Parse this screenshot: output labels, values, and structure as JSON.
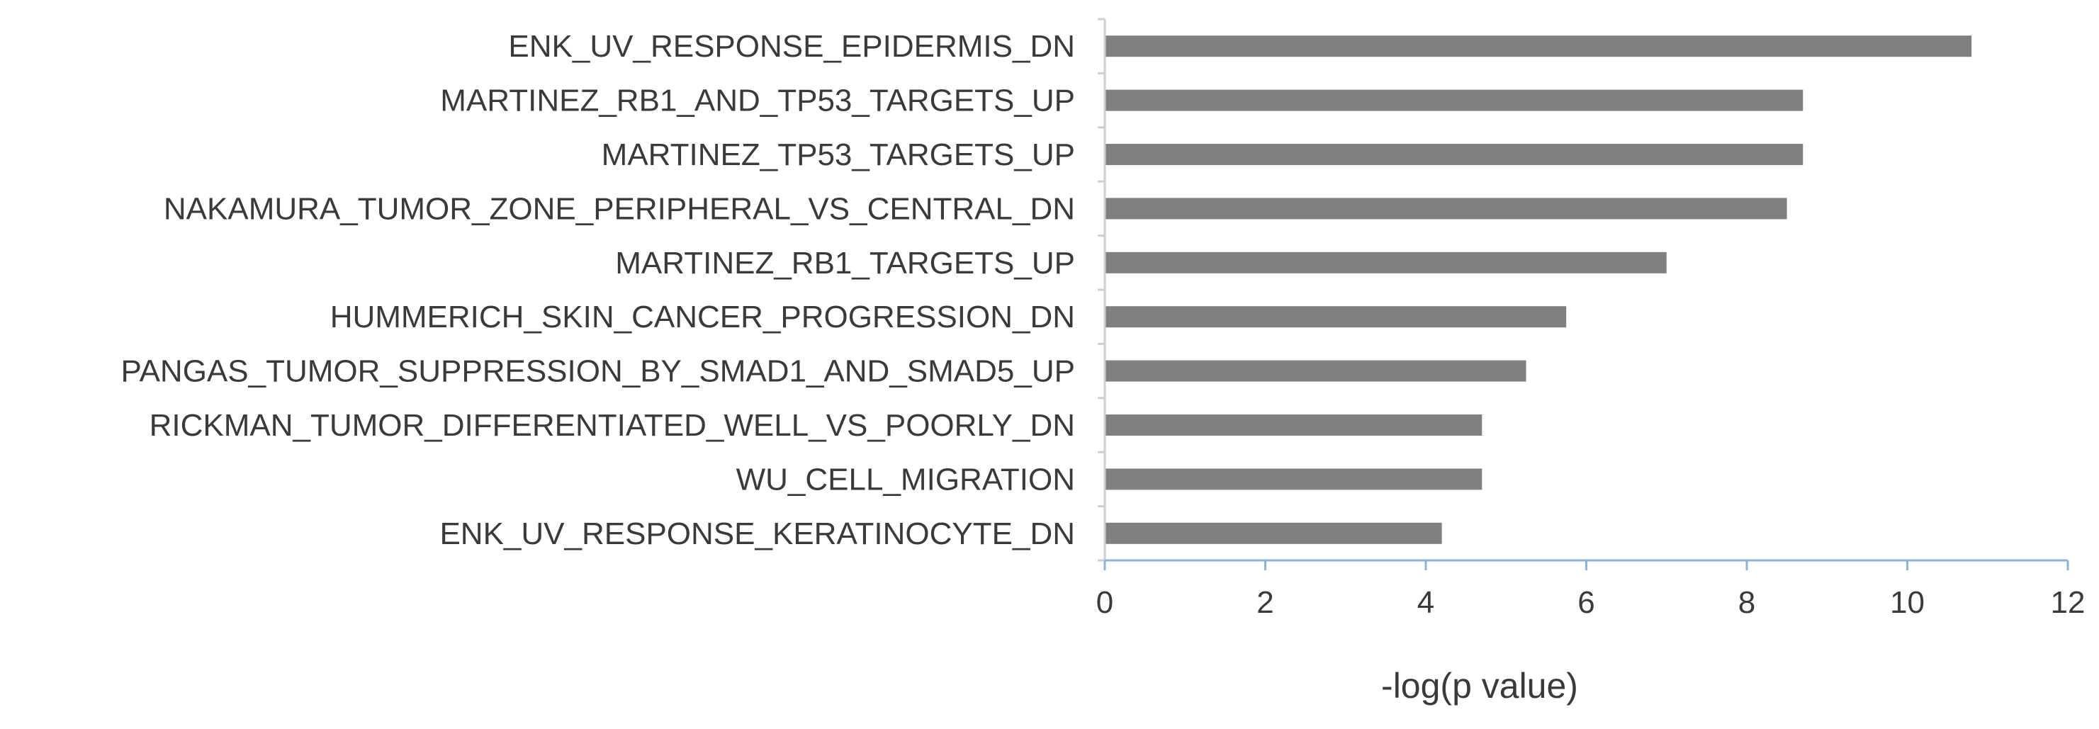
{
  "chart_data": {
    "type": "bar",
    "orientation": "horizontal",
    "categories": [
      "ENK_UV_RESPONSE_EPIDERMIS_DN",
      "MARTINEZ_RB1_AND_TP53_TARGETS_UP",
      "MARTINEZ_TP53_TARGETS_UP",
      "NAKAMURA_TUMOR_ZONE_PERIPHERAL_VS_CENTRAL_DN",
      "MARTINEZ_RB1_TARGETS_UP",
      "HUMMERICH_SKIN_CANCER_PROGRESSION_DN",
      "PANGAS_TUMOR_SUPPRESSION_BY_SMAD1_AND_SMAD5_UP",
      "RICKMAN_TUMOR_DIFFERENTIATED_WELL_VS_POORLY_DN",
      "WU_CELL_MIGRATION",
      "ENK_UV_RESPONSE_KERATINOCYTE_DN"
    ],
    "values": [
      10.8,
      8.7,
      8.7,
      8.5,
      7.0,
      5.75,
      5.25,
      4.7,
      4.7,
      4.2
    ],
    "xlabel": "-log(p value)",
    "xlim": [
      0,
      12
    ],
    "xticks": [
      "0",
      "2",
      "4",
      "6",
      "8",
      "10",
      "12"
    ],
    "grid": false,
    "colors": {
      "bar": "#808080",
      "axis": "#8cb4d9",
      "text": "#3a3a3a"
    }
  }
}
